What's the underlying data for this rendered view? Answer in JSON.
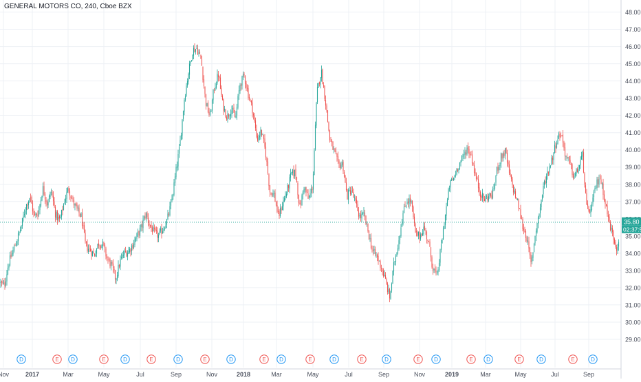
{
  "chart_data": {
    "type": "candlestick",
    "title": "GENERAL MOTORS CO, 240, Cboe BZX",
    "colors": {
      "up": "#26a69a",
      "down": "#ef5350",
      "grid": "#edf0f5",
      "last_price": "#26a69a",
      "event_dividend": "#2196f3",
      "event_earnings": "#ef5350",
      "axis_text": "#4a4f5c"
    },
    "ylim": [
      28.4,
      48.7
    ],
    "y_ticks": [
      "29.00",
      "30.00",
      "31.00",
      "32.00",
      "33.00",
      "34.00",
      "35.00",
      "36.00",
      "37.00",
      "38.00",
      "39.00",
      "40.00",
      "41.00",
      "42.00",
      "43.00",
      "44.00",
      "45.00",
      "46.00",
      "47.00",
      "48.00"
    ],
    "x_ticks": [
      "Nov",
      "2017",
      "Mar",
      "May",
      "Jul",
      "Sep",
      "Nov",
      "2018",
      "Mar",
      "May",
      "Jul",
      "Sep",
      "Nov",
      "2019",
      "Mar",
      "May",
      "Jul",
      "Sep"
    ],
    "last_price": 35.8,
    "last_price_label": "35.80",
    "countdown_label": "02:37:5",
    "price_path": [
      [
        0,
        32.3
      ],
      [
        0.5,
        32.1
      ],
      [
        1.0,
        33.4
      ],
      [
        1.5,
        34.1
      ],
      [
        2.0,
        34.8
      ],
      [
        2.5,
        35.6
      ],
      [
        3.0,
        36.7
      ],
      [
        3.5,
        37.3
      ],
      [
        4.0,
        36.1
      ],
      [
        4.5,
        36.4
      ],
      [
        5.0,
        37.8
      ],
      [
        5.5,
        36.9
      ],
      [
        6.0,
        37.6
      ],
      [
        6.5,
        36.2
      ],
      [
        7.0,
        35.9
      ],
      [
        7.5,
        37.0
      ],
      [
        8.0,
        37.8
      ],
      [
        8.5,
        37.0
      ],
      [
        9.0,
        36.5
      ],
      [
        9.5,
        36.1
      ],
      [
        10.0,
        34.4
      ],
      [
        10.5,
        34.2
      ],
      [
        11.0,
        33.9
      ],
      [
        11.5,
        34.6
      ],
      [
        12.0,
        34.5
      ],
      [
        12.5,
        33.7
      ],
      [
        13.0,
        33.3
      ],
      [
        13.5,
        32.5
      ],
      [
        14.0,
        33.5
      ],
      [
        14.5,
        34.0
      ],
      [
        15.0,
        34.1
      ],
      [
        15.5,
        34.5
      ],
      [
        16.0,
        35.0
      ],
      [
        16.5,
        35.5
      ],
      [
        17.0,
        36.3
      ],
      [
        17.5,
        35.6
      ],
      [
        18.0,
        35.2
      ],
      [
        18.5,
        35.0
      ],
      [
        19.0,
        35.4
      ],
      [
        19.5,
        35.9
      ],
      [
        20.0,
        36.9
      ],
      [
        20.5,
        38.6
      ],
      [
        21.0,
        40.3
      ],
      [
        21.5,
        42.9
      ],
      [
        22.0,
        44.5
      ],
      [
        22.5,
        45.8
      ],
      [
        23.0,
        45.9
      ],
      [
        23.5,
        45.2
      ],
      [
        24.0,
        42.8
      ],
      [
        24.5,
        41.9
      ],
      [
        25.0,
        43.6
      ],
      [
        25.5,
        44.4
      ],
      [
        26.0,
        42.6
      ],
      [
        26.5,
        41.9
      ],
      [
        27.0,
        42.4
      ],
      [
        27.5,
        41.8
      ],
      [
        28.0,
        43.8
      ],
      [
        28.5,
        44.3
      ],
      [
        29.0,
        43.2
      ],
      [
        29.5,
        42.3
      ],
      [
        30.0,
        40.6
      ],
      [
        30.5,
        41.1
      ],
      [
        31.0,
        39.9
      ],
      [
        31.5,
        37.6
      ],
      [
        32.0,
        37.4
      ],
      [
        32.5,
        36.1
      ],
      [
        33.0,
        36.9
      ],
      [
        33.5,
        37.6
      ],
      [
        34.0,
        38.6
      ],
      [
        34.5,
        38.7
      ],
      [
        35.0,
        36.6
      ],
      [
        35.5,
        37.9
      ],
      [
        36.0,
        37.1
      ],
      [
        36.5,
        37.9
      ],
      [
        37.0,
        43.3
      ],
      [
        37.5,
        44.6
      ],
      [
        38.0,
        42.8
      ],
      [
        38.5,
        40.6
      ],
      [
        39.0,
        39.9
      ],
      [
        39.5,
        39.1
      ],
      [
        40.0,
        39.2
      ],
      [
        40.5,
        37.3
      ],
      [
        41.0,
        37.7
      ],
      [
        41.5,
        36.9
      ],
      [
        42.0,
        36.1
      ],
      [
        42.5,
        36.2
      ],
      [
        43.0,
        35.2
      ],
      [
        43.5,
        34.1
      ],
      [
        44.0,
        33.8
      ],
      [
        44.5,
        33.2
      ],
      [
        45.0,
        32.4
      ],
      [
        45.5,
        31.4
      ],
      [
        46.0,
        33.4
      ],
      [
        46.5,
        34.6
      ],
      [
        47.0,
        36.2
      ],
      [
        47.5,
        37.1
      ],
      [
        48.0,
        37.0
      ],
      [
        48.5,
        35.1
      ],
      [
        49.0,
        35.0
      ],
      [
        49.5,
        35.5
      ],
      [
        50.0,
        34.7
      ],
      [
        50.5,
        33.2
      ],
      [
        51.0,
        32.6
      ],
      [
        51.5,
        34.4
      ],
      [
        52.0,
        36.3
      ],
      [
        52.5,
        38.0
      ],
      [
        53.0,
        38.4
      ],
      [
        53.5,
        39.1
      ],
      [
        54.0,
        39.5
      ],
      [
        54.5,
        40.1
      ],
      [
        55.0,
        39.7
      ],
      [
        55.5,
        38.5
      ],
      [
        56.0,
        37.6
      ],
      [
        56.5,
        37.1
      ],
      [
        57.0,
        37.3
      ],
      [
        57.5,
        37.4
      ],
      [
        58.0,
        38.8
      ],
      [
        58.5,
        39.6
      ],
      [
        59.0,
        39.9
      ],
      [
        59.5,
        38.5
      ],
      [
        60.0,
        37.6
      ],
      [
        60.5,
        36.8
      ],
      [
        61.0,
        35.6
      ],
      [
        61.5,
        34.9
      ],
      [
        62.0,
        33.3
      ],
      [
        62.5,
        35.2
      ],
      [
        63.0,
        36.5
      ],
      [
        63.5,
        38.0
      ],
      [
        64.0,
        38.8
      ],
      [
        64.5,
        39.6
      ],
      [
        65.0,
        40.6
      ],
      [
        65.5,
        41.0
      ],
      [
        66.0,
        39.7
      ],
      [
        66.5,
        39.2
      ],
      [
        67.0,
        38.4
      ],
      [
        67.5,
        38.9
      ],
      [
        68.0,
        39.7
      ],
      [
        68.5,
        36.5
      ],
      [
        69.0,
        36.5
      ],
      [
        69.5,
        37.8
      ],
      [
        70.0,
        38.5
      ],
      [
        70.5,
        37.4
      ],
      [
        71.0,
        36.0
      ],
      [
        71.5,
        35.1
      ],
      [
        72.0,
        34.3
      ],
      [
        72.5,
        35.6
      ]
    ],
    "events": [
      {
        "type": "D",
        "x": 31
      },
      {
        "type": "E",
        "x": 83
      },
      {
        "type": "D",
        "x": 106
      },
      {
        "type": "E",
        "x": 151
      },
      {
        "type": "D",
        "x": 182
      },
      {
        "type": "E",
        "x": 220
      },
      {
        "type": "D",
        "x": 259
      },
      {
        "type": "E",
        "x": 298
      },
      {
        "type": "D",
        "x": 336
      },
      {
        "type": "E",
        "x": 384
      },
      {
        "type": "D",
        "x": 409
      },
      {
        "type": "E",
        "x": 451
      },
      {
        "type": "D",
        "x": 486
      },
      {
        "type": "E",
        "x": 526
      },
      {
        "type": "D",
        "x": 562
      },
      {
        "type": "E",
        "x": 608
      },
      {
        "type": "D",
        "x": 634
      },
      {
        "type": "E",
        "x": 685
      },
      {
        "type": "D",
        "x": 710
      },
      {
        "type": "E",
        "x": 755
      },
      {
        "type": "D",
        "x": 787
      },
      {
        "type": "E",
        "x": 833
      },
      {
        "type": "D",
        "x": 862
      }
    ]
  }
}
